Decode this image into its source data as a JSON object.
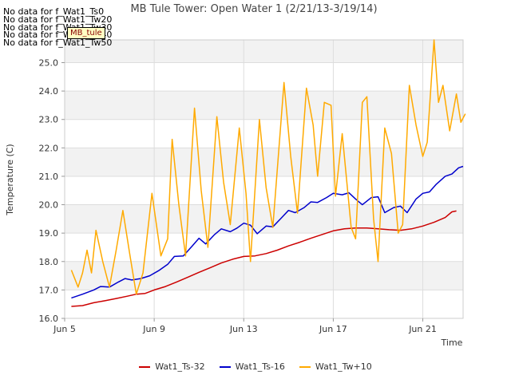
{
  "chart_data": {
    "type": "line",
    "title": "MB Tule Tower: Open Water 1 (2/21/13-3/19/14)",
    "xlabel": "Time",
    "ylabel": "Temperature (C)",
    "xlim": [
      5.0,
      22.8
    ],
    "ylim": [
      16.0,
      25.8
    ],
    "x_ticks": [
      5,
      9,
      13,
      17,
      21
    ],
    "x_tick_labels": [
      "Jun 5",
      "Jun 9",
      "Jun 13",
      "Jun 17",
      "Jun 21"
    ],
    "y_ticks": [
      16.0,
      17.0,
      18.0,
      19.0,
      20.0,
      21.0,
      22.0,
      23.0,
      24.0,
      25.0
    ],
    "y_tick_labels": [
      "16.0",
      "17.0",
      "18.0",
      "19.0",
      "20.0",
      "21.0",
      "22.0",
      "23.0",
      "24.0",
      "25.0"
    ],
    "grid": true,
    "legend_position": "bottom-center",
    "series": [
      {
        "name": "Wat1_Ts-32",
        "color": "#cc0000",
        "points": [
          [
            5.3,
            16.42
          ],
          [
            5.8,
            16.45
          ],
          [
            6.3,
            16.55
          ],
          [
            6.8,
            16.62
          ],
          [
            7.3,
            16.7
          ],
          [
            7.8,
            16.78
          ],
          [
            8.2,
            16.85
          ],
          [
            8.6,
            16.88
          ],
          [
            9.0,
            17.0
          ],
          [
            9.5,
            17.12
          ],
          [
            10.0,
            17.28
          ],
          [
            10.5,
            17.45
          ],
          [
            11.0,
            17.62
          ],
          [
            11.5,
            17.78
          ],
          [
            12.0,
            17.95
          ],
          [
            12.5,
            18.08
          ],
          [
            13.0,
            18.18
          ],
          [
            13.5,
            18.2
          ],
          [
            14.0,
            18.28
          ],
          [
            14.5,
            18.4
          ],
          [
            15.0,
            18.55
          ],
          [
            15.5,
            18.68
          ],
          [
            16.0,
            18.82
          ],
          [
            16.5,
            18.95
          ],
          [
            17.0,
            19.08
          ],
          [
            17.5,
            19.15
          ],
          [
            18.0,
            19.18
          ],
          [
            18.5,
            19.18
          ],
          [
            19.0,
            19.15
          ],
          [
            19.5,
            19.12
          ],
          [
            20.0,
            19.1
          ],
          [
            20.5,
            19.15
          ],
          [
            21.0,
            19.25
          ],
          [
            21.5,
            19.38
          ],
          [
            22.0,
            19.55
          ],
          [
            22.3,
            19.75
          ],
          [
            22.5,
            19.78
          ]
        ]
      },
      {
        "name": "Wat1_Ts-16",
        "color": "#0000cc",
        "points": [
          [
            5.3,
            16.72
          ],
          [
            5.8,
            16.85
          ],
          [
            6.3,
            17.0
          ],
          [
            6.6,
            17.12
          ],
          [
            7.0,
            17.1
          ],
          [
            7.4,
            17.28
          ],
          [
            7.7,
            17.4
          ],
          [
            8.0,
            17.35
          ],
          [
            8.4,
            17.4
          ],
          [
            8.8,
            17.5
          ],
          [
            9.2,
            17.68
          ],
          [
            9.6,
            17.9
          ],
          [
            9.9,
            18.18
          ],
          [
            10.3,
            18.2
          ],
          [
            10.7,
            18.55
          ],
          [
            11.0,
            18.82
          ],
          [
            11.3,
            18.62
          ],
          [
            11.7,
            18.95
          ],
          [
            12.0,
            19.15
          ],
          [
            12.4,
            19.05
          ],
          [
            12.7,
            19.18
          ],
          [
            13.0,
            19.35
          ],
          [
            13.3,
            19.28
          ],
          [
            13.6,
            18.98
          ],
          [
            14.0,
            19.25
          ],
          [
            14.3,
            19.22
          ],
          [
            14.7,
            19.55
          ],
          [
            15.0,
            19.8
          ],
          [
            15.3,
            19.72
          ],
          [
            15.7,
            19.9
          ],
          [
            16.0,
            20.1
          ],
          [
            16.3,
            20.08
          ],
          [
            16.7,
            20.25
          ],
          [
            17.0,
            20.4
          ],
          [
            17.4,
            20.35
          ],
          [
            17.7,
            20.42
          ],
          [
            18.0,
            20.2
          ],
          [
            18.3,
            20.0
          ],
          [
            18.7,
            20.25
          ],
          [
            19.0,
            20.28
          ],
          [
            19.3,
            19.72
          ],
          [
            19.7,
            19.9
          ],
          [
            20.0,
            19.95
          ],
          [
            20.3,
            19.72
          ],
          [
            20.7,
            20.2
          ],
          [
            21.0,
            20.4
          ],
          [
            21.3,
            20.45
          ],
          [
            21.6,
            20.72
          ],
          [
            22.0,
            21.0
          ],
          [
            22.3,
            21.08
          ],
          [
            22.6,
            21.3
          ],
          [
            22.8,
            21.35
          ]
        ]
      },
      {
        "name": "Wat1_Tw+10",
        "color": "#ffaa00",
        "points": [
          [
            5.3,
            17.7
          ],
          [
            5.6,
            17.1
          ],
          [
            5.8,
            17.6
          ],
          [
            6.0,
            18.4
          ],
          [
            6.2,
            17.6
          ],
          [
            6.4,
            19.1
          ],
          [
            6.7,
            18.0
          ],
          [
            7.0,
            17.1
          ],
          [
            7.3,
            18.4
          ],
          [
            7.6,
            19.8
          ],
          [
            7.9,
            18.3
          ],
          [
            8.2,
            16.85
          ],
          [
            8.5,
            17.6
          ],
          [
            8.9,
            20.4
          ],
          [
            9.3,
            18.2
          ],
          [
            9.6,
            18.8
          ],
          [
            9.8,
            22.3
          ],
          [
            10.1,
            20.0
          ],
          [
            10.4,
            18.2
          ],
          [
            10.8,
            23.4
          ],
          [
            11.1,
            20.5
          ],
          [
            11.4,
            18.5
          ],
          [
            11.8,
            23.1
          ],
          [
            12.1,
            20.8
          ],
          [
            12.4,
            19.3
          ],
          [
            12.8,
            22.7
          ],
          [
            13.1,
            20.4
          ],
          [
            13.3,
            18.0
          ],
          [
            13.7,
            23.0
          ],
          [
            14.0,
            20.6
          ],
          [
            14.3,
            19.2
          ],
          [
            14.8,
            24.3
          ],
          [
            15.1,
            21.7
          ],
          [
            15.4,
            19.7
          ],
          [
            15.8,
            24.1
          ],
          [
            16.1,
            22.8
          ],
          [
            16.3,
            21.0
          ],
          [
            16.6,
            23.6
          ],
          [
            16.9,
            23.5
          ],
          [
            17.1,
            20.3
          ],
          [
            17.4,
            22.5
          ],
          [
            17.8,
            19.2
          ],
          [
            18.0,
            18.8
          ],
          [
            18.3,
            23.6
          ],
          [
            18.5,
            23.8
          ],
          [
            18.8,
            19.5
          ],
          [
            19.0,
            18.0
          ],
          [
            19.3,
            22.7
          ],
          [
            19.6,
            21.8
          ],
          [
            19.9,
            19.0
          ],
          [
            20.1,
            19.3
          ],
          [
            20.4,
            24.2
          ],
          [
            20.7,
            22.8
          ],
          [
            21.0,
            21.7
          ],
          [
            21.2,
            22.2
          ],
          [
            21.5,
            25.8
          ],
          [
            21.7,
            23.6
          ],
          [
            21.9,
            24.2
          ],
          [
            22.2,
            22.6
          ],
          [
            22.5,
            23.9
          ],
          [
            22.7,
            22.9
          ],
          [
            22.9,
            23.2
          ]
        ]
      }
    ]
  },
  "no_data_notes": [
    "No data for f_Wat1_Ts0",
    "No data for f_Wat1_Tw20",
    "No data for f_Wat1_Tw30",
    "No data for f_Wat1_Tw40",
    "No data for f_Wat1_Tw50"
  ],
  "site_tag": "MB_tule"
}
